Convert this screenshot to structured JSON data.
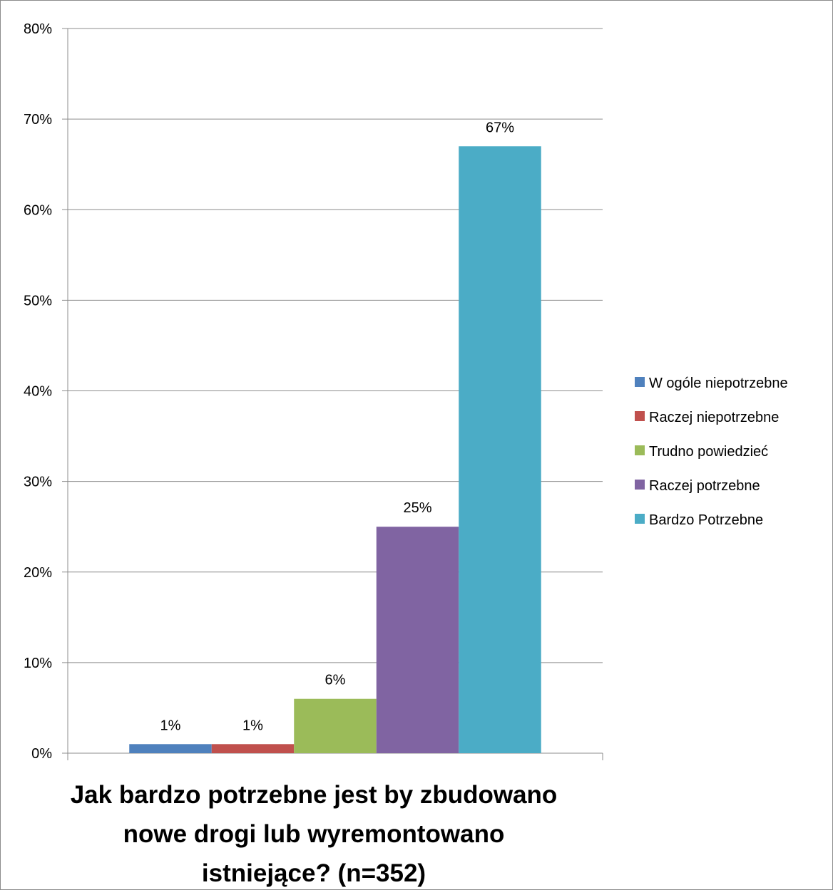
{
  "chart_data": {
    "type": "bar",
    "title_lines": [
      "Jak bardzo potrzebne jest by zbudowano",
      "nowe drogi lub wyremontowano",
      "istniejące? (n=352)"
    ],
    "xlabel": "",
    "ylabel": "",
    "ylim": [
      0,
      80
    ],
    "y_ticks": [
      "0%",
      "10%",
      "20%",
      "30%",
      "40%",
      "50%",
      "60%",
      "70%",
      "80%"
    ],
    "y_tick_values": [
      0,
      10,
      20,
      30,
      40,
      50,
      60,
      70,
      80
    ],
    "grid": true,
    "legend_position": "right",
    "series": [
      {
        "name": "W ogóle niepotrzebne",
        "value": 1,
        "label": "1%",
        "color": "#4f81bd"
      },
      {
        "name": "Raczej niepotrzebne",
        "value": 1,
        "label": "1%",
        "color": "#c0504d"
      },
      {
        "name": "Trudno powiedzieć",
        "value": 6,
        "label": "6%",
        "color": "#9bbb59"
      },
      {
        "name": "Raczej potrzebne",
        "value": 25,
        "label": "25%",
        "color": "#8064a2"
      },
      {
        "name": "Bardzo Potrzebne",
        "value": 67,
        "label": "67%",
        "color": "#4bacc6"
      }
    ]
  }
}
